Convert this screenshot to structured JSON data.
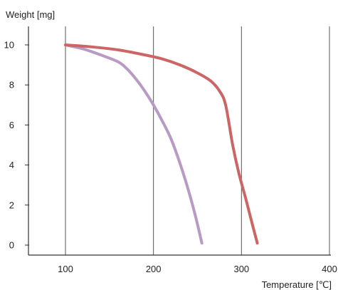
{
  "chart_data": {
    "type": "line",
    "title": "",
    "xlabel": "Temperature [℃]",
    "ylabel": "Weight  [mg]",
    "xlim": [
      100,
      400
    ],
    "ylim": [
      0,
      10
    ],
    "x_ticks": [
      100,
      200,
      300,
      400
    ],
    "y_ticks": [
      0,
      2,
      4,
      6,
      8,
      10
    ],
    "grid": "vertical-only",
    "legend": "none",
    "series": [
      {
        "color": "#b89ac4",
        "points": [
          [
            100,
            10.0
          ],
          [
            120,
            9.8
          ],
          [
            140,
            9.5
          ],
          [
            160,
            9.15
          ],
          [
            170,
            8.8
          ],
          [
            180,
            8.3
          ],
          [
            190,
            7.7
          ],
          [
            200,
            7.0
          ],
          [
            210,
            6.2
          ],
          [
            220,
            5.3
          ],
          [
            230,
            4.1
          ],
          [
            240,
            2.7
          ],
          [
            248,
            1.4
          ],
          [
            255,
            0.1
          ]
        ]
      },
      {
        "color": "#cc6666",
        "points": [
          [
            100,
            10.0
          ],
          [
            130,
            9.9
          ],
          [
            160,
            9.75
          ],
          [
            190,
            9.5
          ],
          [
            210,
            9.3
          ],
          [
            230,
            9.0
          ],
          [
            250,
            8.6
          ],
          [
            265,
            8.2
          ],
          [
            275,
            7.7
          ],
          [
            282,
            7.0
          ],
          [
            290,
            5.0
          ],
          [
            297,
            3.6
          ],
          [
            305,
            2.3
          ],
          [
            312,
            1.1
          ],
          [
            318,
            0.1
          ]
        ]
      }
    ]
  }
}
